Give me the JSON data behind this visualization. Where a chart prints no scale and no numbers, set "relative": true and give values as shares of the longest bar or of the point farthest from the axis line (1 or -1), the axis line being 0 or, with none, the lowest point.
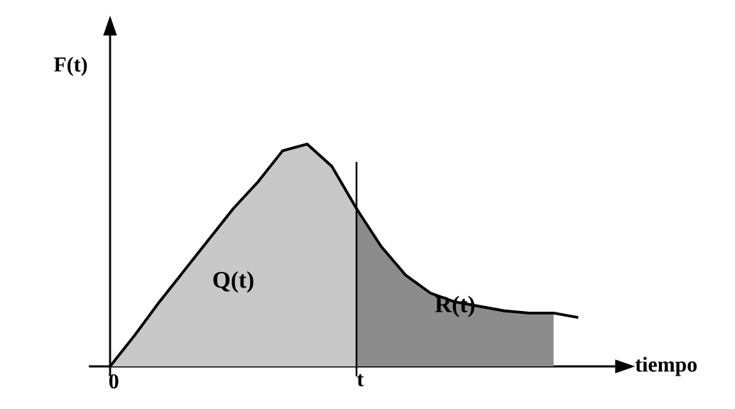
{
  "chart_data": {
    "type": "area",
    "relative": true,
    "xlabel": "tiempo",
    "ylabel": "F(t)",
    "annotations": [
      "0",
      "t"
    ],
    "marker": "none",
    "categories": [
      null,
      null,
      null,
      null,
      null,
      null,
      null,
      null,
      null,
      null,
      null,
      null,
      null,
      null,
      null,
      null,
      null,
      null,
      null,
      null
    ],
    "series": [
      {
        "name": "Q(t)",
        "color": "#c8c8c8",
        "values": [
          0,
          0.14,
          0.29,
          0.43,
          0.57,
          0.71,
          0.83,
          0.97,
          1.0,
          0.9,
          0.71,
          null,
          null,
          null,
          null,
          null,
          null,
          null,
          null,
          null
        ]
      },
      {
        "name": "R(t)",
        "color": "#8c8c8c",
        "values": [
          null,
          null,
          null,
          null,
          null,
          null,
          null,
          null,
          null,
          null,
          0.71,
          0.54,
          0.41,
          0.33,
          0.29,
          0.27,
          0.25,
          0.24,
          0.24,
          null
        ]
      },
      {
        "type": "line",
        "color": "#000000",
        "values": [
          0,
          0.14,
          0.29,
          0.43,
          0.57,
          0.71,
          0.83,
          0.97,
          1.0,
          0.9,
          0.71,
          0.54,
          0.41,
          0.33,
          0.29,
          0.27,
          0.25,
          0.24,
          0.24,
          0.22
        ]
      }
    ]
  }
}
